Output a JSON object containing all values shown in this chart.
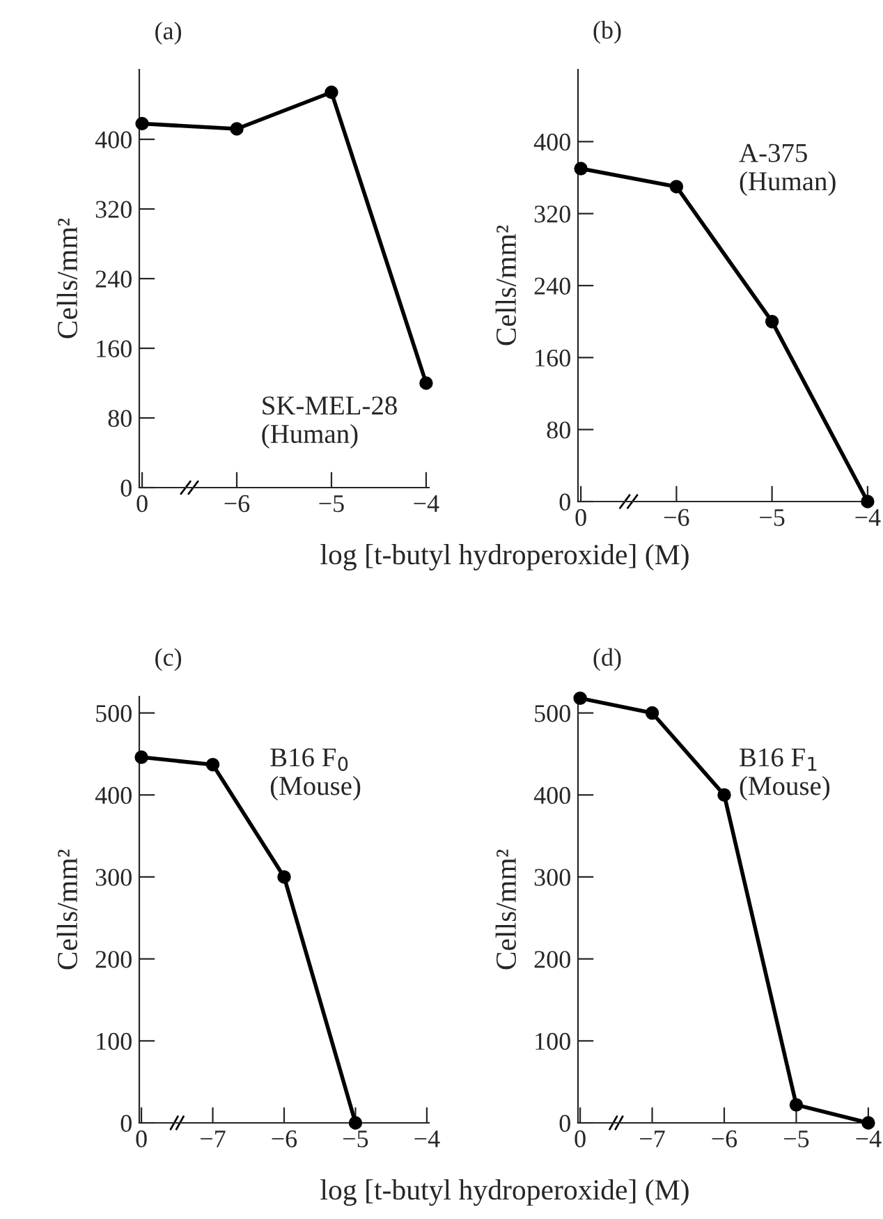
{
  "chart_data": [
    {
      "type": "line",
      "title": "(a)",
      "xlabel": "log [t-butyl hydroperoxide] (M)",
      "ylabel": "Cells/mm²",
      "categories": [
        "0",
        "−6",
        "−5",
        "−4"
      ],
      "values": [
        418,
        412,
        454,
        120
      ],
      "color": "#000000",
      "marker": "circle",
      "line_style": "solid",
      "ylim": [
        0,
        480
      ],
      "yticks": [
        0,
        80,
        160,
        240,
        320,
        400
      ],
      "annotations": [
        "SK-MEL-28\n(Human)"
      ]
    },
    {
      "type": "line",
      "title": "(b)",
      "ylabel": "Cells/mm²",
      "categories": [
        "0",
        "−6",
        "−5",
        "−4"
      ],
      "values": [
        370,
        350,
        200,
        0
      ],
      "color": "#000000",
      "marker": "circle",
      "line_style": "solid",
      "ylim": [
        0,
        480
      ],
      "yticks": [
        0,
        80,
        160,
        240,
        320,
        400
      ],
      "annotations": [
        "A-375\n(Human)"
      ]
    },
    {
      "type": "line",
      "title": "(c)",
      "xlabel": "log [t-butyl hydroperoxide] (M)",
      "ylabel": "Cells/mm²",
      "categories": [
        "0",
        "−7",
        "−6",
        "−5",
        "−4"
      ],
      "values": [
        446,
        437,
        300,
        0,
        null
      ],
      "color": "#000000",
      "marker": "circle",
      "line_style": "solid",
      "ylim": [
        0,
        520
      ],
      "yticks": [
        0,
        100,
        200,
        300,
        400,
        500
      ],
      "annotations": [
        "B16 F$_{0}$\n(Mouse)"
      ]
    },
    {
      "type": "line",
      "title": "(d)",
      "ylabel": "Cells/mm²",
      "categories": [
        "0",
        "−7",
        "−6",
        "−5",
        "−4"
      ],
      "values": [
        518,
        500,
        400,
        22,
        0
      ],
      "color": "#000000",
      "marker": "circle",
      "line_style": "solid",
      "ylim": [
        0,
        520
      ],
      "yticks": [
        0,
        100,
        200,
        300,
        400,
        500
      ],
      "annotations": [
        "B16 F$_{1}$\n(Mouse)"
      ]
    }
  ]
}
